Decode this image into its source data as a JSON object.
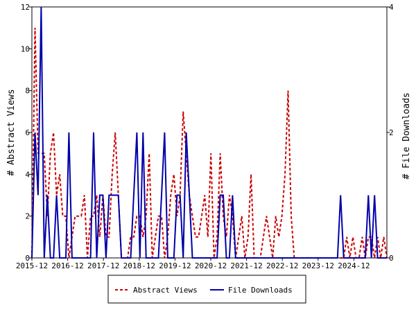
{
  "chart_data": {
    "type": "line",
    "x_tick_labels": [
      "2015-12",
      "2016-12",
      "2017-12",
      "2018-12",
      "2019-12",
      "2020-12",
      "2021-12",
      "2022-12",
      "2023-12",
      "2024-12"
    ],
    "y_left": {
      "label": "# Abstract Views",
      "ylim": [
        0,
        12
      ],
      "ticks": [
        "0",
        "2",
        "4",
        "6",
        "8",
        "10",
        "12"
      ]
    },
    "y_right": {
      "label": "# File Downloads",
      "ylim": [
        0,
        4
      ],
      "ticks": [
        "0",
        "2",
        "4"
      ]
    },
    "grid": false,
    "legend": "bottom-center",
    "series": [
      {
        "name": "Abstract Views",
        "axis": "left",
        "color": "#cc0000",
        "style": "dashed",
        "values": [
          0,
          11,
          5,
          5,
          5,
          2,
          5,
          6,
          3,
          4,
          2,
          2,
          0,
          1,
          2,
          2,
          2,
          3,
          0,
          2,
          2,
          3,
          1,
          3,
          1,
          1,
          4,
          6,
          3,
          0,
          0,
          0,
          1,
          1,
          2,
          2,
          1,
          2,
          5,
          0,
          1,
          2,
          2,
          0,
          1,
          3,
          4,
          2,
          3,
          7,
          5,
          3,
          2,
          1,
          1,
          2,
          3,
          1,
          5,
          0,
          1,
          5,
          2,
          1,
          3,
          2,
          0,
          1,
          2,
          0,
          1,
          4,
          0,
          0,
          0,
          1,
          2,
          1,
          0,
          2,
          1,
          2,
          4,
          8,
          2,
          0,
          0,
          0,
          0,
          0,
          0,
          0,
          0,
          0,
          0,
          0,
          0,
          0,
          0,
          0,
          0,
          0,
          1,
          0,
          1,
          0,
          0,
          1,
          0,
          1,
          1,
          0,
          1,
          0,
          1,
          0
        ]
      },
      {
        "name": "File Downloads",
        "axis": "right",
        "color": "#0000aa",
        "style": "solid",
        "values": [
          0,
          2,
          1,
          4,
          0,
          1,
          0,
          0,
          1,
          0,
          0,
          0,
          2,
          0,
          0,
          0,
          0,
          0,
          0,
          0,
          2,
          0,
          1,
          1,
          0,
          1,
          1,
          1,
          1,
          0,
          0,
          0,
          0,
          1,
          2,
          0,
          2,
          0,
          0,
          0,
          0,
          0,
          1,
          2,
          0,
          0,
          0,
          1,
          1,
          0,
          2,
          1,
          0,
          0,
          0,
          0,
          0,
          0,
          0,
          0,
          0,
          1,
          1,
          0,
          0,
          1,
          0,
          0,
          0,
          0,
          0,
          0,
          0,
          0,
          0,
          0,
          0,
          0,
          0,
          0,
          0,
          0,
          0,
          0,
          0,
          0,
          0,
          0,
          0,
          0,
          0,
          0,
          0,
          0,
          0,
          0,
          0,
          0,
          0,
          0,
          1,
          0,
          0,
          0,
          0,
          0,
          0,
          0,
          0,
          1,
          0,
          1,
          0,
          0,
          0,
          0
        ]
      }
    ]
  }
}
